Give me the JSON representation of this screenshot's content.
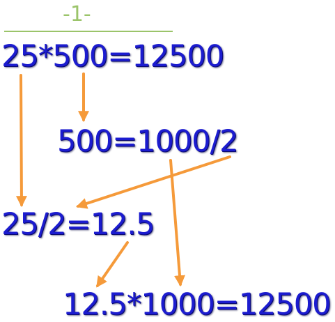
{
  "step": {
    "title": "-1-"
  },
  "equations": {
    "line1": "25*500=12500",
    "line2": "500=1000/2",
    "line3": "25/2=12.5",
    "line4": "12.5*1000=12500"
  },
  "colors": {
    "equation_text": "#1c1ccf",
    "title_text": "#9bc46a",
    "divider": "#9bc46a",
    "arrow": "#f59a3a"
  }
}
